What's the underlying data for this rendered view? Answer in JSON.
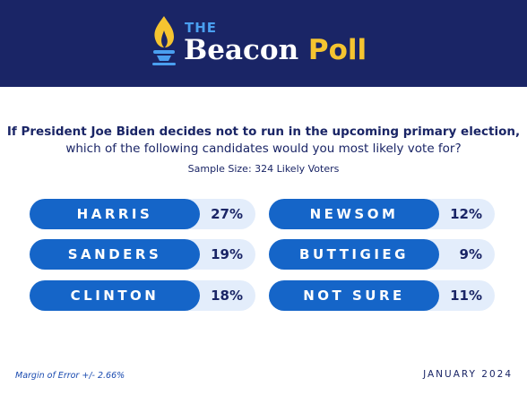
{
  "header": {
    "the": "THE",
    "beacon": "Beacon",
    "poll": "Poll"
  },
  "question": {
    "line1": "If President Joe Biden decides not to run in the upcoming primary election,",
    "line2": "which of the following candidates would you most likely vote for?"
  },
  "sample_size": "Sample Size: 324 Likely Voters",
  "results": [
    {
      "name": "HARRIS",
      "share": "27%"
    },
    {
      "name": "SANDERS",
      "share": "19%"
    },
    {
      "name": "CLINTON",
      "share": "18%"
    },
    {
      "name": "NEWSOM",
      "share": "12%"
    },
    {
      "name": "BUTTIGIEG",
      "share": "9%"
    },
    {
      "name": "NOT SURE",
      "share": "11%"
    }
  ],
  "footer": {
    "margin_of_error": "Margin of Error +/- 2.66%",
    "date": "JANUARY 2024"
  }
}
